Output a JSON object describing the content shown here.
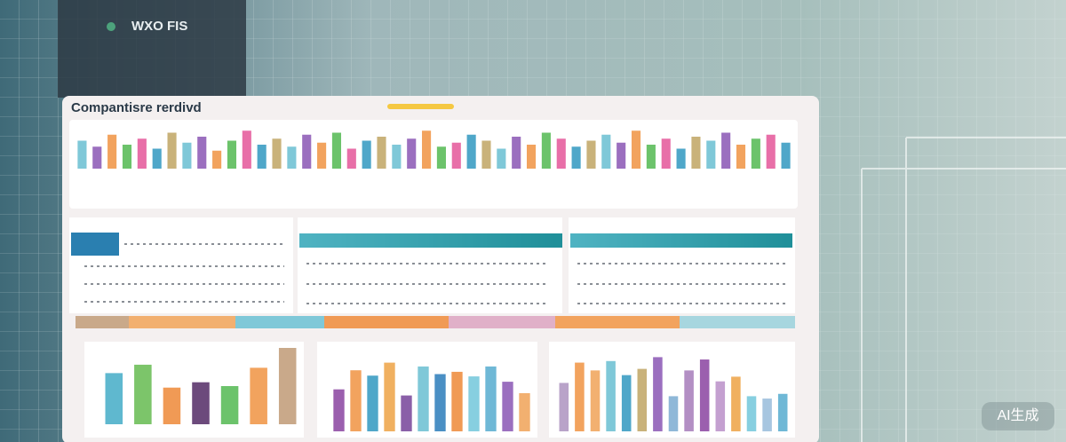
{
  "header": {
    "title": "WXO FIS"
  },
  "panel": {
    "title": "Compantisre rerdivd"
  },
  "charts": [
    {
      "type": "bar",
      "ylim": [
        0,
        100
      ],
      "colors": [
        "#7fc8d8",
        "#9b6fbf",
        "#f2a35e",
        "#6cc36b",
        "#e86fa8",
        "#4fa7c9",
        "#c9b27a"
      ],
      "values": [
        70,
        55,
        85,
        60,
        75,
        50,
        90,
        65,
        80,
        45,
        70,
        95,
        60,
        75,
        55,
        85,
        65,
        90,
        50,
        70,
        80,
        60,
        75,
        95,
        55,
        65,
        85,
        70,
        50,
        80,
        60,
        90,
        75,
        55,
        70,
        85,
        65,
        95,
        60,
        75,
        50,
        80,
        70,
        90,
        60,
        75,
        85,
        65
      ]
    },
    {
      "type": "bar",
      "ylim": [
        0,
        100
      ],
      "colors": [
        "#5fb8cf",
        "#7cc56a",
        "#f09a55",
        "#6c4a7c",
        "#6cc36b",
        "#f2a35e",
        "#c9a98a"
      ],
      "values": [
        67,
        78,
        48,
        55,
        50,
        74,
        100
      ]
    },
    {
      "type": "bar",
      "ylim": [
        0,
        100
      ],
      "colors": [
        "#9b5fae",
        "#f2a35e",
        "#4fa7c9",
        "#f0b060",
        "#8a5fa8",
        "#7fc8d8",
        "#4a8fc4",
        "#f09a55",
        "#87cfe0",
        "#6fb8d6",
        "#9b6fbf",
        "#f2b070"
      ],
      "values": [
        55,
        80,
        73,
        90,
        47,
        85,
        75,
        78,
        72,
        85,
        65,
        50
      ]
    },
    {
      "type": "bar",
      "ylim": [
        0,
        100
      ],
      "colors": [
        "#b9a3c9",
        "#f2a35e",
        "#f2b070",
        "#7fc8d8",
        "#4fa7c9",
        "#c9b27a",
        "#9b6fbf",
        "#8fb8d8",
        "#b38fc4",
        "#9b5fae",
        "#c4a0d0",
        "#f0b060",
        "#87cfe0",
        "#a7c6e0",
        "#6fb8d6"
      ],
      "values": [
        62,
        88,
        78,
        90,
        72,
        80,
        95,
        45,
        78,
        92,
        64,
        70,
        45,
        42,
        48
      ]
    }
  ],
  "watermark": "AI生成"
}
